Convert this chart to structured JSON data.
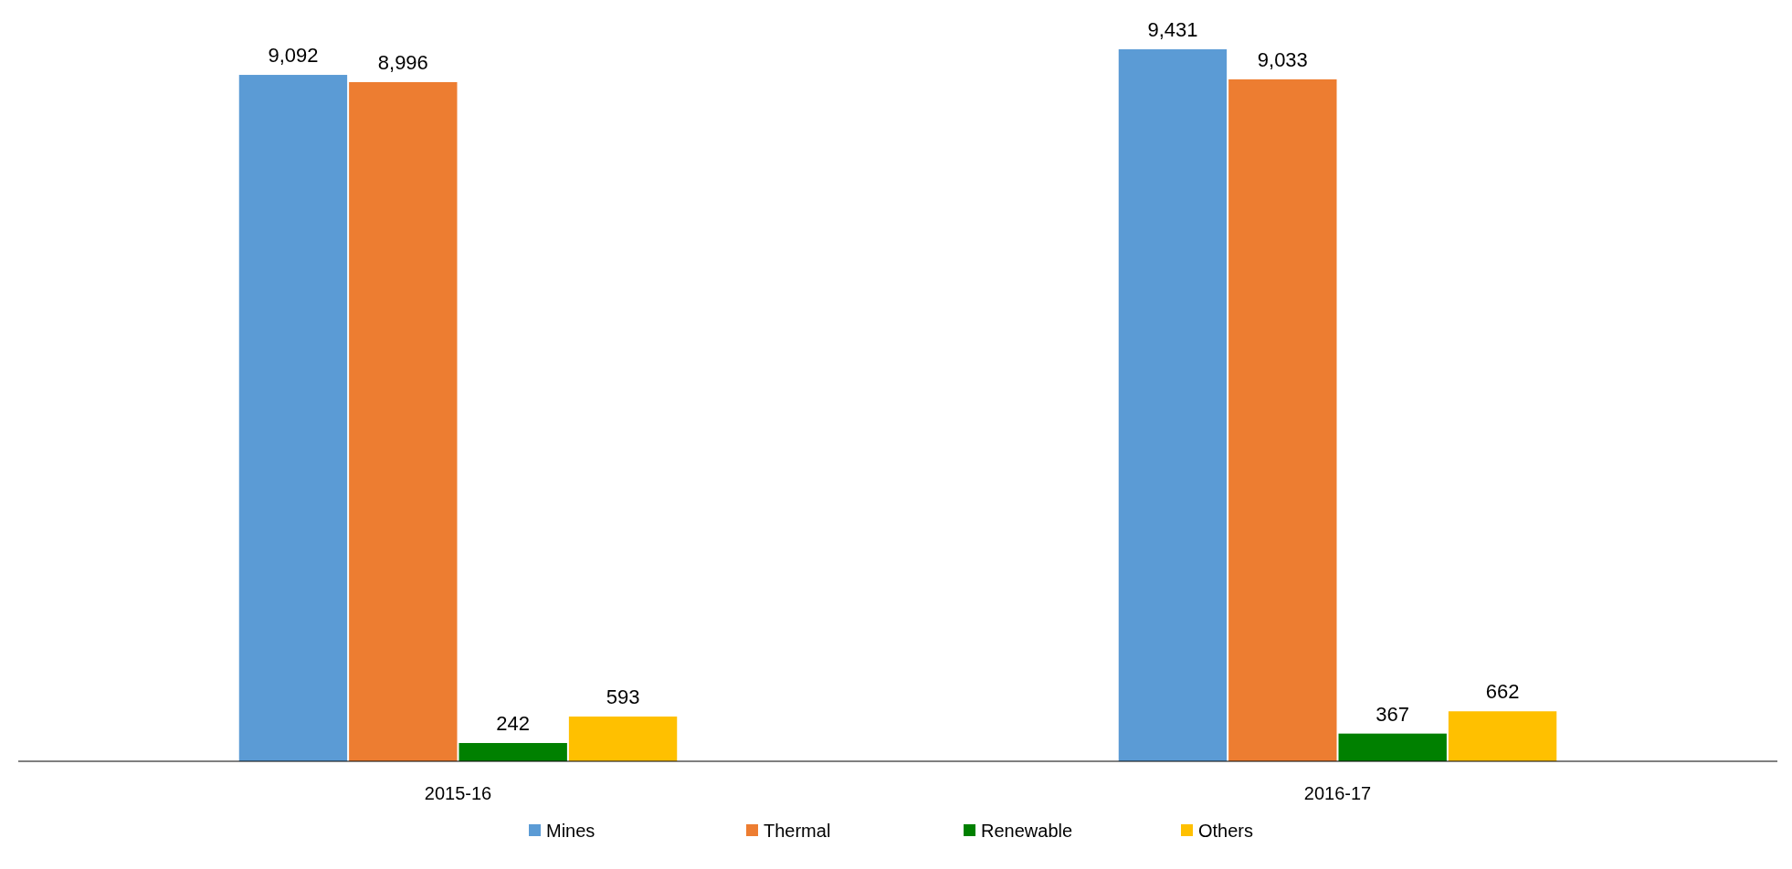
{
  "chart_data": {
    "type": "bar",
    "categories": [
      "2015-16",
      "2016-17"
    ],
    "series": [
      {
        "name": "Mines",
        "color": "#5b9bd5",
        "values": [
          9092,
          9431
        ],
        "value_labels": [
          "9,092",
          "9,431"
        ]
      },
      {
        "name": "Thermal",
        "color": "#ed7d31",
        "values": [
          8996,
          9033
        ],
        "value_labels": [
          "8,996",
          "9,033"
        ]
      },
      {
        "name": "Renewable",
        "color": "#008000",
        "values": [
          242,
          367
        ],
        "value_labels": [
          "242",
          "367"
        ]
      },
      {
        "name": "Others",
        "color": "#ffc000",
        "values": [
          593,
          662
        ],
        "value_labels": [
          "593",
          "662"
        ]
      }
    ],
    "legend": "bottom"
  }
}
